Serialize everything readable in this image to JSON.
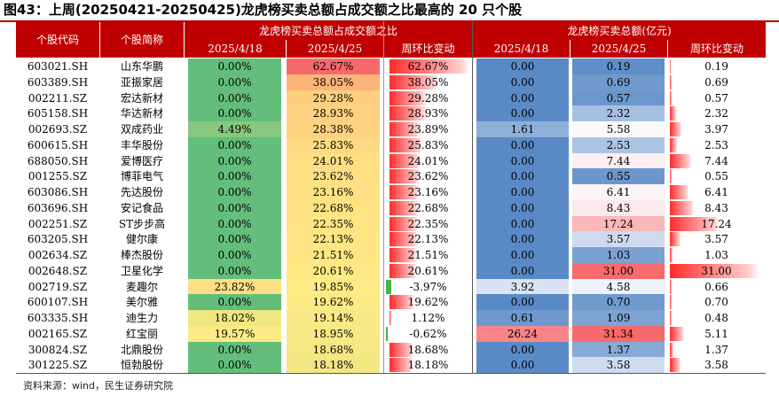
{
  "title": "图43：上周(20250421-20250425)龙虎榜买卖总额占成交额之比最高的 20 只个股",
  "source": "资料来源：wind，民生证券研究院",
  "headers": {
    "code": "个股代码",
    "name": "个股简称",
    "group1": "龙虎榜买卖总额占成交额之比",
    "group2": "龙虎榜买卖总额(亿元)",
    "date1": "2025/4/18",
    "date2": "2025/4/25",
    "change": "周环比变动"
  },
  "rows": [
    {
      "code": "603021.SH",
      "name": "山东华鹏",
      "r1": "0.00%",
      "r2": "62.67%",
      "rc": "62.67%",
      "a1": "0.00",
      "a2": "0.19",
      "ac": "0.19",
      "r1v": 0,
      "r2v": 62.67,
      "rcv": 62.67,
      "a1v": 0,
      "a2v": 0.19,
      "acv": 0.19
    },
    {
      "code": "603389.SH",
      "name": "亚振家居",
      "r1": "0.00%",
      "r2": "38.05%",
      "rc": "38.05%",
      "a1": "0.00",
      "a2": "0.69",
      "ac": "0.69",
      "r1v": 0,
      "r2v": 38.05,
      "rcv": 38.05,
      "a1v": 0,
      "a2v": 0.69,
      "acv": 0.69
    },
    {
      "code": "002211.SZ",
      "name": "宏达新材",
      "r1": "0.00%",
      "r2": "29.28%",
      "rc": "29.28%",
      "a1": "0.00",
      "a2": "0.57",
      "ac": "0.57",
      "r1v": 0,
      "r2v": 29.28,
      "rcv": 29.28,
      "a1v": 0,
      "a2v": 0.57,
      "acv": 0.57
    },
    {
      "code": "605158.SH",
      "name": "华达新材",
      "r1": "0.00%",
      "r2": "28.93%",
      "rc": "28.93%",
      "a1": "0.00",
      "a2": "2.32",
      "ac": "2.32",
      "r1v": 0,
      "r2v": 28.93,
      "rcv": 28.93,
      "a1v": 0,
      "a2v": 2.32,
      "acv": 2.32
    },
    {
      "code": "002693.SZ",
      "name": "双成药业",
      "r1": "4.49%",
      "r2": "28.38%",
      "rc": "23.89%",
      "a1": "1.61",
      "a2": "5.58",
      "ac": "3.97",
      "r1v": 4.49,
      "r2v": 28.38,
      "rcv": 23.89,
      "a1v": 1.61,
      "a2v": 5.58,
      "acv": 3.97
    },
    {
      "code": "600615.SH",
      "name": "丰华股份",
      "r1": "0.00%",
      "r2": "25.83%",
      "rc": "25.83%",
      "a1": "0.00",
      "a2": "2.53",
      "ac": "2.53",
      "r1v": 0,
      "r2v": 25.83,
      "rcv": 25.83,
      "a1v": 0,
      "a2v": 2.53,
      "acv": 2.53
    },
    {
      "code": "688050.SH",
      "name": "爱博医疗",
      "r1": "0.00%",
      "r2": "24.01%",
      "rc": "24.01%",
      "a1": "0.00",
      "a2": "7.44",
      "ac": "7.44",
      "r1v": 0,
      "r2v": 24.01,
      "rcv": 24.01,
      "a1v": 0,
      "a2v": 7.44,
      "acv": 7.44
    },
    {
      "code": "001255.SZ",
      "name": "博菲电气",
      "r1": "0.00%",
      "r2": "23.62%",
      "rc": "23.62%",
      "a1": "0.00",
      "a2": "0.55",
      "ac": "0.55",
      "r1v": 0,
      "r2v": 23.62,
      "rcv": 23.62,
      "a1v": 0,
      "a2v": 0.55,
      "acv": 0.55
    },
    {
      "code": "603086.SH",
      "name": "先达股份",
      "r1": "0.00%",
      "r2": "23.16%",
      "rc": "23.16%",
      "a1": "0.00",
      "a2": "6.41",
      "ac": "6.41",
      "r1v": 0,
      "r2v": 23.16,
      "rcv": 23.16,
      "a1v": 0,
      "a2v": 6.41,
      "acv": 6.41
    },
    {
      "code": "603696.SH",
      "name": "安记食品",
      "r1": "0.00%",
      "r2": "22.68%",
      "rc": "22.68%",
      "a1": "0.00",
      "a2": "8.43",
      "ac": "8.43",
      "r1v": 0,
      "r2v": 22.68,
      "rcv": 22.68,
      "a1v": 0,
      "a2v": 8.43,
      "acv": 8.43
    },
    {
      "code": "002251.SZ",
      "name": "ST步步高",
      "r1": "0.00%",
      "r2": "22.35%",
      "rc": "22.35%",
      "a1": "0.00",
      "a2": "17.24",
      "ac": "17.24",
      "r1v": 0,
      "r2v": 22.35,
      "rcv": 22.35,
      "a1v": 0,
      "a2v": 17.24,
      "acv": 17.24
    },
    {
      "code": "603205.SH",
      "name": "健尔康",
      "r1": "0.00%",
      "r2": "22.13%",
      "rc": "22.13%",
      "a1": "0.00",
      "a2": "3.57",
      "ac": "3.57",
      "r1v": 0,
      "r2v": 22.13,
      "rcv": 22.13,
      "a1v": 0,
      "a2v": 3.57,
      "acv": 3.57
    },
    {
      "code": "002634.SZ",
      "name": "棒杰股份",
      "r1": "0.00%",
      "r2": "21.51%",
      "rc": "21.51%",
      "a1": "0.00",
      "a2": "1.03",
      "ac": "1.03",
      "r1v": 0,
      "r2v": 21.51,
      "rcv": 21.51,
      "a1v": 0,
      "a2v": 1.03,
      "acv": 1.03
    },
    {
      "code": "002648.SZ",
      "name": "卫星化学",
      "r1": "0.00%",
      "r2": "20.61%",
      "rc": "20.61%",
      "a1": "0.00",
      "a2": "31.00",
      "ac": "31.00",
      "r1v": 0,
      "r2v": 20.61,
      "rcv": 20.61,
      "a1v": 0,
      "a2v": 31.0,
      "acv": 31.0
    },
    {
      "code": "002719.SZ",
      "name": "麦趣尔",
      "r1": "23.82%",
      "r2": "19.85%",
      "rc": "-3.97%",
      "a1": "3.92",
      "a2": "4.58",
      "ac": "0.66",
      "r1v": 23.82,
      "r2v": 19.85,
      "rcv": -3.97,
      "a1v": 3.92,
      "a2v": 4.58,
      "acv": 0.66
    },
    {
      "code": "600107.SH",
      "name": "美尔雅",
      "r1": "0.00%",
      "r2": "19.62%",
      "rc": "19.62%",
      "a1": "0.00",
      "a2": "0.70",
      "ac": "0.70",
      "r1v": 0,
      "r2v": 19.62,
      "rcv": 19.62,
      "a1v": 0,
      "a2v": 0.7,
      "acv": 0.7
    },
    {
      "code": "603335.SH",
      "name": "迪生力",
      "r1": "18.02%",
      "r2": "19.14%",
      "rc": "1.12%",
      "a1": "0.61",
      "a2": "1.09",
      "ac": "0.48",
      "r1v": 18.02,
      "r2v": 19.14,
      "rcv": 1.12,
      "a1v": 0.61,
      "a2v": 1.09,
      "acv": 0.48
    },
    {
      "code": "002165.SZ",
      "name": "红宝丽",
      "r1": "19.57%",
      "r2": "18.95%",
      "rc": "-0.62%",
      "a1": "26.24",
      "a2": "31.34",
      "ac": "5.11",
      "r1v": 19.57,
      "r2v": 18.95,
      "rcv": -0.62,
      "a1v": 26.24,
      "a2v": 31.34,
      "acv": 5.11
    },
    {
      "code": "300824.SZ",
      "name": "北鼎股份",
      "r1": "0.00%",
      "r2": "18.68%",
      "rc": "18.68%",
      "a1": "0.00",
      "a2": "1.37",
      "ac": "1.37",
      "r1v": 0,
      "r2v": 18.68,
      "rcv": 18.68,
      "a1v": 0,
      "a2v": 1.37,
      "acv": 1.37
    },
    {
      "code": "301225.SZ",
      "name": "恒勃股份",
      "r1": "0.00%",
      "r2": "18.18%",
      "rc": "18.18%",
      "a1": "0.00",
      "a2": "3.58",
      "ac": "3.58",
      "r1v": 0,
      "r2v": 18.18,
      "rcv": 18.18,
      "a1v": 0,
      "a2v": 3.58,
      "acv": 3.58
    }
  ],
  "colors": {
    "header": "#c00000",
    "ratio_low": "#63be7b",
    "ratio_mid": "#ffeb84",
    "ratio_high": "#f8696b",
    "amount_low": "#5a8ac6",
    "amount_mid": "#fcfcff",
    "amount_high": "#f8696b",
    "bar": "#ff2a2a",
    "neg_bar": "#43b549"
  }
}
